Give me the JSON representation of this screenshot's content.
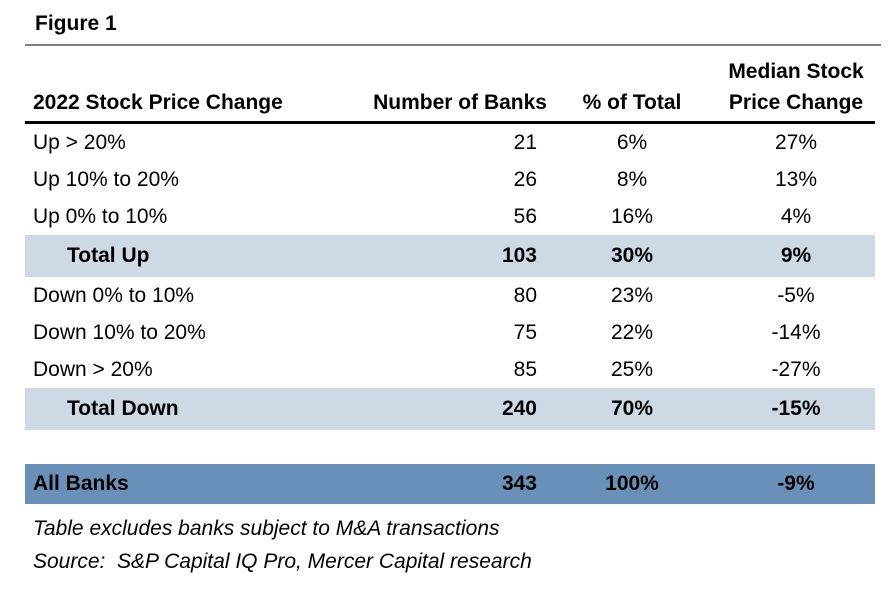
{
  "figure": {
    "title": "Figure 1"
  },
  "table": {
    "headers": {
      "col1": "2022 Stock Price Change",
      "col2": "Number of Banks",
      "col3": "% of Total",
      "col4_line1": "Median Stock",
      "col4_line2": "Price Change"
    },
    "rows": [
      {
        "label": "Up > 20%",
        "banks": "21",
        "pct_total": "6%",
        "median_change": "27%"
      },
      {
        "label": "Up 10% to 20%",
        "banks": "26",
        "pct_total": "8%",
        "median_change": "13%"
      },
      {
        "label": "Up 0% to 10%",
        "banks": "56",
        "pct_total": "16%",
        "median_change": "4%"
      },
      {
        "label": "Total Up",
        "banks": "103",
        "pct_total": "30%",
        "median_change": "9%"
      },
      {
        "label": "Down 0% to 10%",
        "banks": "80",
        "pct_total": "23%",
        "median_change": "-5%"
      },
      {
        "label": "Down 10% to 20%",
        "banks": "75",
        "pct_total": "22%",
        "median_change": "-14%"
      },
      {
        "label": "Down > 20%",
        "banks": "85",
        "pct_total": "25%",
        "median_change": "-27%"
      },
      {
        "label": "Total Down",
        "banks": "240",
        "pct_total": "70%",
        "median_change": "-15%"
      }
    ],
    "all_banks": {
      "label": "All Banks",
      "banks": "343",
      "pct_total": "100%",
      "median_change": "-9%"
    }
  },
  "footnotes": {
    "exclusion": "Table excludes banks subject to M&A transactions",
    "source": "Source:  S&P Capital IQ Pro, Mercer Capital research"
  },
  "colors": {
    "highlight_row": "#cdd9e5",
    "all_banks_row": "#6890b8",
    "title_rule": "#808080",
    "header_underline": "#000000",
    "background": "#ffffff"
  }
}
